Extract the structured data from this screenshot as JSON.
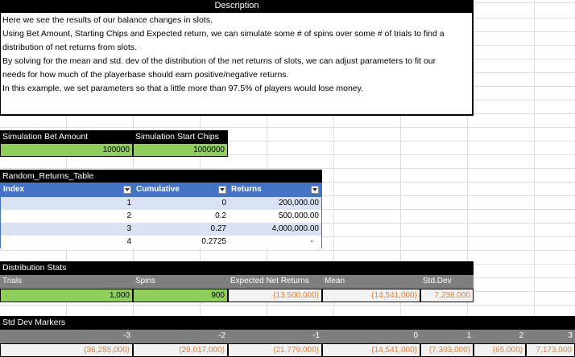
{
  "description": {
    "title": "Description",
    "lines": [
      "Here we see the results of our balance changes in slots.",
      "Using Bet Amount, Starting Chips and Expected return, we can simulate some # of spins over some # of trials to find a",
      "distribution of net returns from slots.",
      "By solving for the mean and std. dev of the distribution of the net returns of slots, we can adjust parameters to fit our",
      "needs for how much of the playerbase should earn positive/negative returns.",
      "In this example, we set parameters so that a little more than 97.5% of players would lose money."
    ]
  },
  "sim": {
    "bet_label": "Simulation Bet Amount",
    "bet_value": "100000",
    "chips_label": "Simulation Start Chips",
    "chips_value": "1000000"
  },
  "random_table": {
    "title": "Random_Returns_Table",
    "headers": [
      "Index",
      "Cumulative",
      "Returns"
    ],
    "rows": [
      [
        "1",
        "0",
        "200,000.00"
      ],
      [
        "2",
        "0.2",
        "500,000.00"
      ],
      [
        "3",
        "0.27",
        "4,000,000.00"
      ],
      [
        "4",
        "0.2725",
        "-"
      ]
    ]
  },
  "dist": {
    "title": "Distribution Stats",
    "headers": [
      "Trials",
      "Spins",
      "Expected Net Returns",
      "Mean",
      "Std.Dev"
    ],
    "values": [
      "1,000",
      "900",
      "(13,500,000)",
      "(14,541,000)",
      "7,238,000"
    ]
  },
  "markers": {
    "title": "Std Dev Markers",
    "headers": [
      "-3",
      "-2",
      "-1",
      "0",
      "1",
      "2",
      "3"
    ],
    "values": [
      "(36,255,000)",
      "(29,017,000)",
      "(21,779,000)",
      "(14,541,000)",
      "(7,303,000)",
      "(65,000)",
      "7,173,000"
    ]
  },
  "colors": {
    "green": "#8fce5a",
    "blue_header": "#4472c4",
    "gray_header": "#7f7f7f",
    "orange_text": "#ed7d31"
  }
}
